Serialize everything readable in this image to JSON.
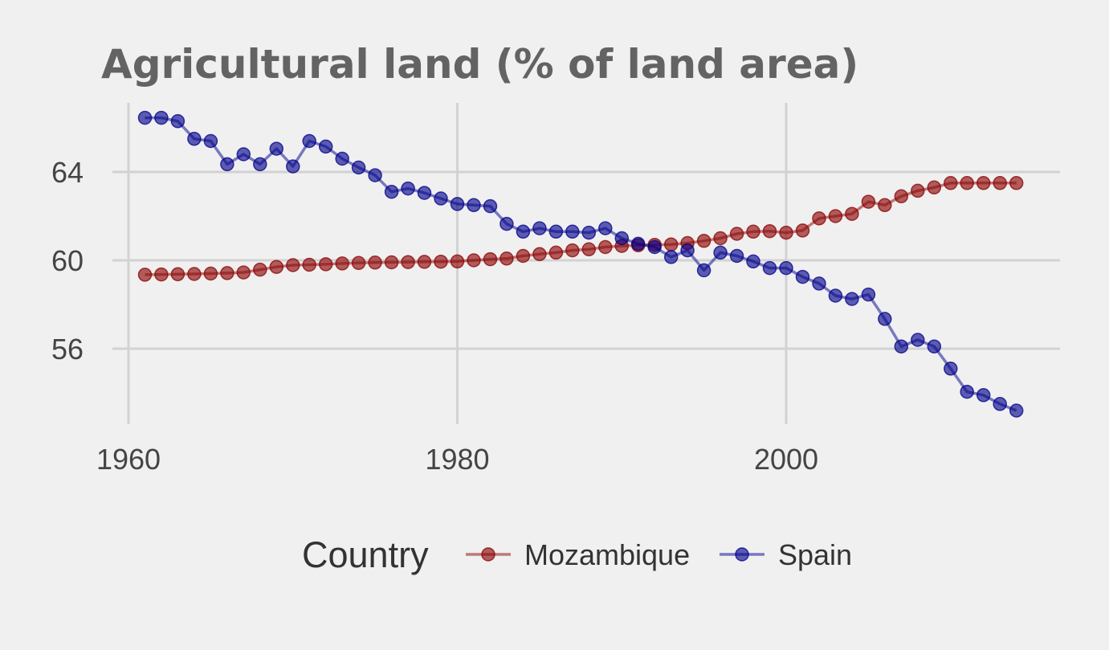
{
  "chart_data": {
    "type": "line",
    "title": "Agricultural land (% of land area)",
    "xlabel": "",
    "ylabel": "",
    "xlim": [
      1960,
      2017
    ],
    "ylim": [
      52.5,
      67.0
    ],
    "x_ticks": [
      1960,
      1980,
      2000
    ],
    "y_ticks": [
      56,
      60,
      64
    ],
    "grid": true,
    "legend": {
      "title": "Country",
      "position": "bottom"
    },
    "x": [
      1961,
      1962,
      1963,
      1964,
      1965,
      1966,
      1967,
      1968,
      1969,
      1970,
      1971,
      1972,
      1973,
      1974,
      1975,
      1976,
      1977,
      1978,
      1979,
      1980,
      1981,
      1982,
      1983,
      1984,
      1985,
      1986,
      1987,
      1988,
      1989,
      1990,
      1991,
      1992,
      1993,
      1994,
      1995,
      1996,
      1997,
      1998,
      1999,
      2000,
      2001,
      2002,
      2003,
      2004,
      2005,
      2006,
      2007,
      2008,
      2009,
      2010,
      2011,
      2012,
      2013,
      2014
    ],
    "series": [
      {
        "name": "Mozambique",
        "color": "#8b0000",
        "values": [
          59.35,
          59.36,
          59.37,
          59.38,
          59.4,
          59.42,
          59.45,
          59.58,
          59.7,
          59.78,
          59.8,
          59.82,
          59.86,
          59.88,
          59.9,
          59.91,
          59.92,
          59.93,
          59.94,
          59.95,
          60.0,
          60.05,
          60.08,
          60.2,
          60.28,
          60.35,
          60.45,
          60.5,
          60.6,
          60.65,
          60.68,
          60.7,
          60.72,
          60.78,
          60.88,
          61.0,
          61.2,
          61.3,
          61.32,
          61.25,
          61.35,
          61.9,
          62.0,
          62.1,
          62.65,
          62.5,
          62.9,
          63.15,
          63.3,
          63.5,
          63.5,
          63.5,
          63.5,
          63.5
        ]
      },
      {
        "name": "Spain",
        "color": "#00008b",
        "values": [
          66.45,
          66.45,
          66.3,
          65.5,
          65.4,
          64.35,
          64.8,
          64.35,
          65.05,
          64.25,
          65.4,
          65.15,
          64.6,
          64.2,
          63.85,
          63.1,
          63.25,
          63.05,
          62.8,
          62.55,
          62.5,
          62.45,
          61.65,
          61.3,
          61.45,
          61.3,
          61.3,
          61.25,
          61.45,
          61.0,
          60.75,
          60.6,
          60.15,
          60.45,
          59.55,
          60.35,
          60.2,
          59.95,
          59.65,
          59.65,
          59.25,
          58.95,
          58.4,
          58.25,
          58.45,
          57.35,
          56.1,
          56.4,
          56.1,
          55.1,
          54.05,
          53.9,
          53.5,
          53.2
        ]
      }
    ]
  }
}
